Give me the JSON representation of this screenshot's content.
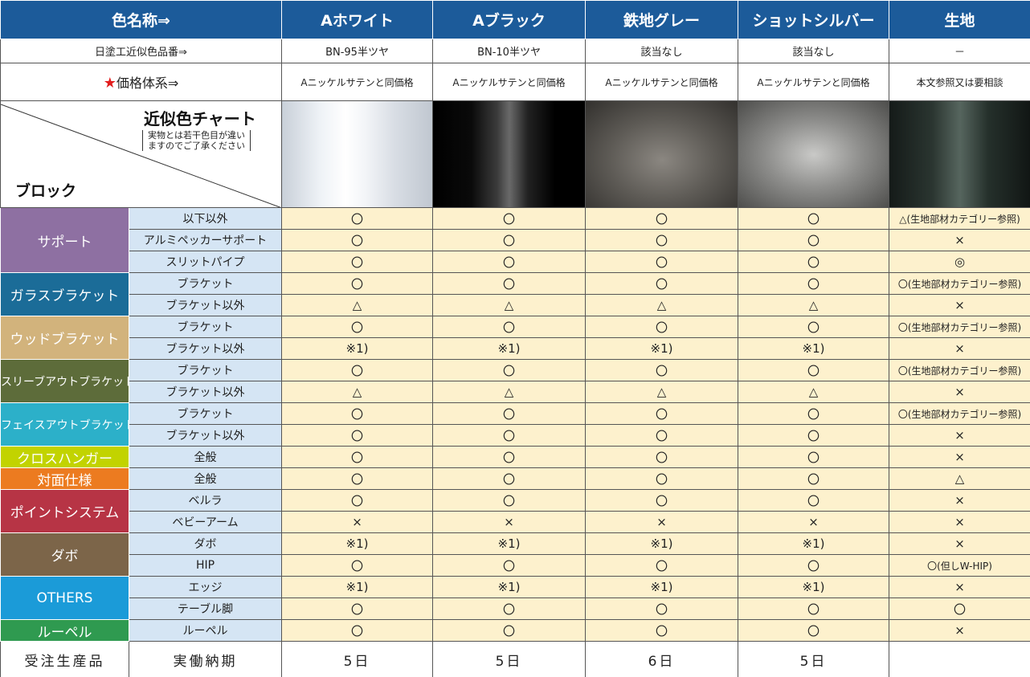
{
  "header": {
    "label": "色名称⇒",
    "colors": [
      "Aホワイト",
      "Aブラック",
      "鉄地グレー",
      "ショットシルバー",
      "生地"
    ]
  },
  "code_row": {
    "label": "日塗工近似色品番⇒",
    "values": [
      "BN-95半ツヤ",
      "BN-10半ツヤ",
      "該当なし",
      "該当なし",
      "－"
    ]
  },
  "price_row": {
    "star": "★",
    "label": "価格体系⇒",
    "values": [
      "Aニッケルサテンと同価格",
      "Aニッケルサテンと同価格",
      "Aニッケルサテンと同価格",
      "Aニッケルサテンと同価格",
      "本文参照又は要相談"
    ]
  },
  "swatch_row": {
    "title": "近似色チャート",
    "note": [
      "実物とは若干色目が違い",
      "ますのでご了承ください"
    ],
    "block_label": "ブロック"
  },
  "groups": [
    {
      "name": "サポート",
      "color": "#8e70a2",
      "rows": [
        {
          "name": "以下以外",
          "values": [
            "〇",
            "〇",
            "〇",
            "〇",
            "△(生地部材カテゴリー参照)"
          ]
        },
        {
          "name": "アルミペッカーサポート",
          "values": [
            "〇",
            "〇",
            "〇",
            "〇",
            "×"
          ]
        },
        {
          "name": "スリットパイプ",
          "values": [
            "〇",
            "〇",
            "〇",
            "〇",
            "◎"
          ]
        }
      ]
    },
    {
      "name": "ガラスブラケット",
      "color": "#1b6c98",
      "rows": [
        {
          "name": "ブラケット",
          "values": [
            "〇",
            "〇",
            "〇",
            "〇",
            "〇(生地部材カテゴリー参照)"
          ]
        },
        {
          "name": "ブラケット以外",
          "values": [
            "△",
            "△",
            "△",
            "△",
            "×"
          ]
        }
      ]
    },
    {
      "name": "ウッドブラケット",
      "color": "#d2b37c",
      "rows": [
        {
          "name": "ブラケット",
          "values": [
            "〇",
            "〇",
            "〇",
            "〇",
            "〇(生地部材カテゴリー参照)"
          ]
        },
        {
          "name": "ブラケット以外",
          "values": [
            "※1)",
            "※1)",
            "※1)",
            "※1)",
            "×"
          ]
        }
      ]
    },
    {
      "name": "スリーブアウトブラケット",
      "color": "#5d6c3a",
      "rows": [
        {
          "name": "ブラケット",
          "values": [
            "〇",
            "〇",
            "〇",
            "〇",
            "〇(生地部材カテゴリー参照)"
          ]
        },
        {
          "name": "ブラケット以外",
          "values": [
            "△",
            "△",
            "△",
            "△",
            "×"
          ]
        }
      ]
    },
    {
      "name": "フェイスアウトブラケット",
      "color": "#2cb0c9",
      "rows": [
        {
          "name": "ブラケット",
          "values": [
            "〇",
            "〇",
            "〇",
            "〇",
            "〇(生地部材カテゴリー参照)"
          ]
        },
        {
          "name": "ブラケット以外",
          "values": [
            "〇",
            "〇",
            "〇",
            "〇",
            "×"
          ]
        }
      ]
    },
    {
      "name": "クロスハンガー",
      "color": "#c2d300",
      "rows": [
        {
          "name": "全般",
          "values": [
            "〇",
            "〇",
            "〇",
            "〇",
            "×"
          ]
        }
      ]
    },
    {
      "name": "対面仕様",
      "color": "#ec7b20",
      "rows": [
        {
          "name": "全般",
          "values": [
            "〇",
            "〇",
            "〇",
            "〇",
            "△"
          ]
        }
      ]
    },
    {
      "name": "ポイントシステム",
      "color": "#b73445",
      "rows": [
        {
          "name": "ベルラ",
          "values": [
            "〇",
            "〇",
            "〇",
            "〇",
            "×"
          ]
        },
        {
          "name": "ベビーアーム",
          "values": [
            "×",
            "×",
            "×",
            "×",
            "×"
          ]
        }
      ]
    },
    {
      "name": "ダボ",
      "color": "#7c6549",
      "rows": [
        {
          "name": "ダボ",
          "values": [
            "※1)",
            "※1)",
            "※1)",
            "※1)",
            "×"
          ]
        },
        {
          "name": "HIP",
          "values": [
            "〇",
            "〇",
            "〇",
            "〇",
            "〇(但しW-HIP)"
          ]
        }
      ]
    },
    {
      "name": "OTHERS",
      "color": "#1b9bd8",
      "rows": [
        {
          "name": "エッジ",
          "values": [
            "※1)",
            "※1)",
            "※1)",
            "※1)",
            "×"
          ]
        },
        {
          "name": "テーブル脚",
          "values": [
            "〇",
            "〇",
            "〇",
            "〇",
            "〇"
          ]
        }
      ]
    },
    {
      "name": "ルーペル",
      "color": "#2f9a50",
      "rows": [
        {
          "name": "ルーペル",
          "values": [
            "〇",
            "〇",
            "〇",
            "〇",
            "×"
          ]
        }
      ]
    }
  ],
  "footer": {
    "label": "受注生産品",
    "sub": "実働納期",
    "values": [
      "5日",
      "5日",
      "6日",
      "5日"
    ]
  }
}
